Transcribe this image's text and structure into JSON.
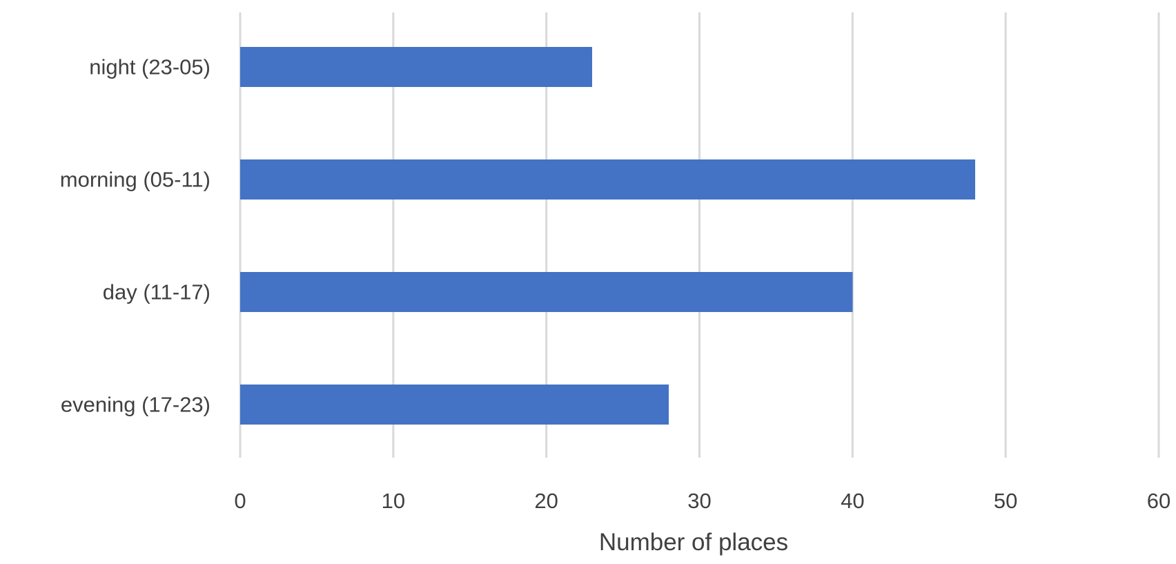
{
  "chart_data": {
    "type": "bar",
    "orientation": "horizontal",
    "categories": [
      "night (23-05)",
      "morning (05-11)",
      "day (11-17)",
      "evening (17-23)"
    ],
    "values": [
      23,
      48,
      40,
      28
    ],
    "xlabel": "Number of places",
    "ylabel": "",
    "xlim": [
      0,
      60
    ],
    "xticks": [
      "0",
      "10",
      "20",
      "30",
      "40",
      "50",
      "60"
    ],
    "grid": "vertical",
    "legend": "none",
    "bar_color": "#4472C4"
  }
}
